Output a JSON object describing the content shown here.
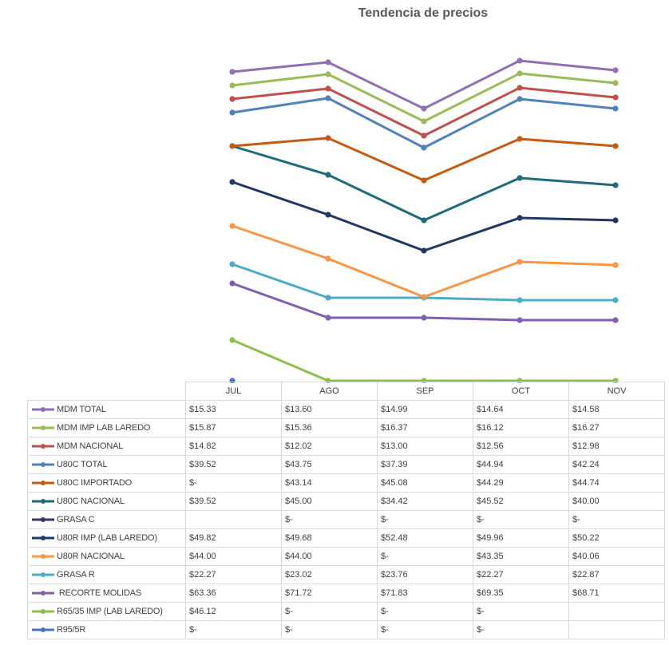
{
  "chart_data": {
    "type": "line",
    "title": "Tendencia de precios",
    "categories": [
      "JUL",
      "AGO",
      "SEP",
      "OCT",
      "NOV"
    ],
    "series": [
      {
        "name": "MDM TOTAL",
        "color": "#8e6fb5",
        "values": [
          15.33,
          13.6,
          14.99,
          14.64,
          14.58
        ],
        "labels": [
          "$15.33",
          "$13.60",
          "$14.99",
          "$14.64",
          "$14.58"
        ]
      },
      {
        "name": "MDM IMP LAB LAREDO",
        "color": "#9bbb59",
        "values": [
          15.87,
          15.36,
          16.37,
          16.12,
          16.27
        ],
        "labels": [
          "$15.87",
          "$15.36",
          "$16.37",
          "$16.12",
          "$16.27"
        ]
      },
      {
        "name": "MDM NACIONAL",
        "color": "#c0504d",
        "values": [
          14.82,
          12.02,
          13.0,
          12.56,
          12.98
        ],
        "labels": [
          "$14.82",
          "$12.02",
          "$13.00",
          "$12.56",
          "$12.98"
        ]
      },
      {
        "name": "U80C TOTAL",
        "color": "#4f81bd",
        "values": [
          39.52,
          43.75,
          37.39,
          44.94,
          42.24
        ],
        "labels": [
          "$39.52",
          "$43.75",
          "$37.39",
          "$44.94",
          "$42.24"
        ]
      },
      {
        "name": "U80C IMPORTADO",
        "color": "#c55a11",
        "values": [
          null,
          43.14,
          45.08,
          44.29,
          44.74
        ],
        "labels": [
          "$-",
          "$43.14",
          "$45.08",
          "$44.29",
          "$44.74"
        ]
      },
      {
        "name": "U80C NACIONAL",
        "color": "#1f6b7a",
        "values": [
          39.52,
          45.0,
          34.42,
          45.52,
          40.0
        ],
        "labels": [
          "$39.52",
          "$45.00",
          "$34.42",
          "$45.52",
          "$40.00"
        ]
      },
      {
        "name": "GRASA C",
        "color": "#3b3367",
        "values": [
          null,
          null,
          null,
          null,
          null
        ],
        "labels": [
          "",
          "$-",
          "$-",
          "$-",
          "$-"
        ]
      },
      {
        "name": "U80R IMP (LAB LAREDO)",
        "color": "#1f3864",
        "values": [
          49.82,
          49.68,
          52.48,
          49.96,
          50.22
        ],
        "labels": [
          "$49.82",
          "$49.68",
          "$52.48",
          "$49.96",
          "$50.22"
        ]
      },
      {
        "name": "U80R NACIONAL",
        "color": "#f79646",
        "values": [
          44.0,
          44.0,
          null,
          43.35,
          40.06
        ],
        "labels": [
          "$44.00",
          "$44.00",
          "$-",
          "$43.35",
          "$40.06"
        ]
      },
      {
        "name": "GRASA R",
        "color": "#4bacc6",
        "values": [
          22.27,
          23.02,
          23.76,
          22.27,
          22.87
        ],
        "labels": [
          "$22.27",
          "$23.02",
          "$23.76",
          "$22.27",
          "$22.87"
        ]
      },
      {
        "name": " RECORTE MOLIDAS",
        "color": "#7f5fb2",
        "values": [
          63.36,
          71.72,
          71.83,
          69.35,
          68.71
        ],
        "labels": [
          "$63.36",
          "$71.72",
          "$71.83",
          "$69.35",
          "$68.71"
        ]
      },
      {
        "name": "R65/35 IMP (LAB LAREDO)",
        "color": "#8cc04a",
        "values": [
          46.12,
          null,
          null,
          null,
          null
        ],
        "labels": [
          "$46.12",
          "$-",
          "$-",
          "$-",
          ""
        ]
      },
      {
        "name": "R95/5R",
        "color": "#4472c4",
        "values": [
          null,
          null,
          null,
          null,
          null
        ],
        "labels": [
          "$-",
          "$-",
          "$-",
          "$-",
          ""
        ]
      }
    ],
    "drawn_lines": [
      {
        "series": "MDM TOTAL",
        "y": [
          15.33,
          13.6,
          14.99,
          14.64,
          14.58
        ],
        "stack_base": 401
      },
      {
        "series": "MDM IMP LAB LAREDO",
        "y": [
          15.87,
          15.36,
          16.37,
          16.12,
          16.27
        ]
      }
    ],
    "grid": false,
    "legend": "table"
  }
}
